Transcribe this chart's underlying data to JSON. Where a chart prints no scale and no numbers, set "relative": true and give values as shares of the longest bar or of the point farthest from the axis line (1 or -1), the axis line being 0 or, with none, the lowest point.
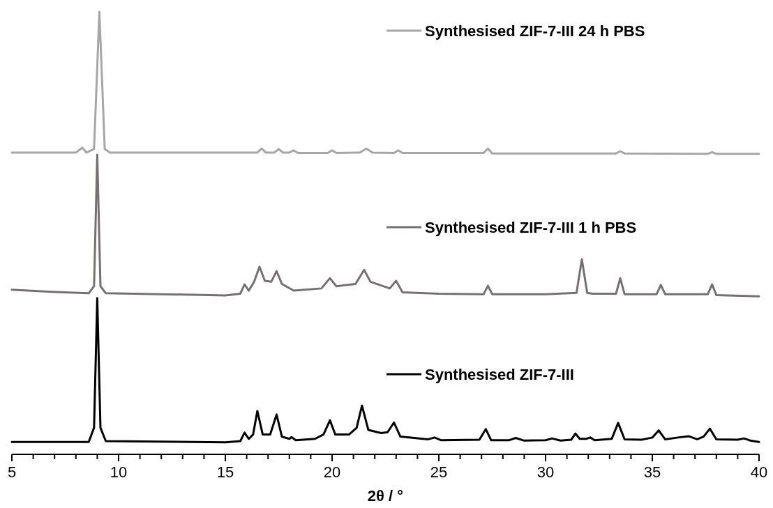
{
  "chart_data": {
    "type": "line",
    "relative": true,
    "xlabel": "2θ / °",
    "xlim": [
      5,
      40
    ],
    "xticks": [
      5,
      {
        "value": 6,
        "label": null
      },
      {
        "value": 7,
        "label": null
      },
      {
        "value": 8,
        "label": null
      },
      {
        "value": 9,
        "label": null
      },
      10,
      {
        "value": 11,
        "label": null
      },
      {
        "value": 12,
        "label": null
      },
      {
        "value": 13,
        "label": null
      },
      {
        "value": 14,
        "label": null
      },
      15,
      {
        "value": 16,
        "label": null
      },
      {
        "value": 17,
        "label": null
      },
      {
        "value": 18,
        "label": null
      },
      {
        "value": 19,
        "label": null
      },
      20,
      {
        "value": 21,
        "label": null
      },
      {
        "value": 22,
        "label": null
      },
      {
        "value": 23,
        "label": null
      },
      {
        "value": 24,
        "label": null
      },
      25,
      {
        "value": 26,
        "label": null
      },
      {
        "value": 27,
        "label": null
      },
      {
        "value": 28,
        "label": null
      },
      {
        "value": 29,
        "label": null
      },
      30,
      {
        "value": 31,
        "label": null
      },
      {
        "value": 32,
        "label": null
      },
      {
        "value": 33,
        "label": null
      },
      {
        "value": 34,
        "label": null
      },
      35,
      {
        "value": 36,
        "label": null
      },
      {
        "value": 37,
        "label": null
      },
      {
        "value": 38,
        "label": null
      },
      {
        "value": 39,
        "label": null
      },
      40
    ],
    "legend": "right",
    "grid": false,
    "marker": "none",
    "line_style": "solid",
    "series": [
      {
        "name": "Synthesised ZIF-7-III 24 h PBS",
        "color": "#a6a6a6",
        "x": [
          5,
          8.0,
          8.3,
          8.5,
          8.85,
          9.1,
          9.35,
          9.6,
          11.5,
          16.5,
          16.7,
          16.9,
          17.3,
          17.5,
          17.7,
          18.0,
          18.2,
          18.4,
          19.8,
          20.0,
          20.2,
          21.3,
          21.6,
          21.9,
          22.9,
          23.1,
          23.3,
          27.1,
          27.3,
          27.5,
          33.3,
          33.5,
          33.7,
          37.6,
          37.8,
          38.0,
          40
        ],
        "values": [
          0.682,
          0.682,
          0.693,
          0.682,
          0.69,
          1.0,
          0.69,
          0.682,
          0.682,
          0.682,
          0.691,
          0.682,
          0.682,
          0.69,
          0.682,
          0.682,
          0.687,
          0.681,
          0.681,
          0.687,
          0.681,
          0.682,
          0.691,
          0.682,
          0.681,
          0.687,
          0.681,
          0.681,
          0.691,
          0.68,
          0.68,
          0.685,
          0.68,
          0.679,
          0.683,
          0.679,
          0.679
        ]
      },
      {
        "name": "Synthesised ZIF-7-III 1 h PBS",
        "color": "#767171",
        "x": [
          5,
          7,
          8.6,
          8.85,
          9.0,
          9.15,
          9.4,
          12,
          15,
          15.7,
          15.9,
          16.1,
          16.35,
          16.6,
          16.85,
          17.15,
          17.4,
          17.65,
          18.2,
          19.5,
          19.9,
          20.2,
          21.1,
          21.5,
          21.8,
          22.7,
          23.0,
          23.3,
          25,
          27.1,
          27.3,
          27.5,
          30,
          31.45,
          31.7,
          31.95,
          32.2,
          33.3,
          33.5,
          33.7,
          35.2,
          35.4,
          35.6,
          37.6,
          37.8,
          38.0,
          40
        ],
        "values": [
          0.372,
          0.367,
          0.364,
          0.38,
          0.677,
          0.38,
          0.364,
          0.362,
          0.359,
          0.363,
          0.384,
          0.37,
          0.39,
          0.424,
          0.392,
          0.39,
          0.414,
          0.385,
          0.37,
          0.375,
          0.398,
          0.38,
          0.385,
          0.417,
          0.39,
          0.375,
          0.392,
          0.366,
          0.363,
          0.362,
          0.381,
          0.362,
          0.362,
          0.365,
          0.441,
          0.365,
          0.363,
          0.363,
          0.398,
          0.362,
          0.362,
          0.383,
          0.362,
          0.362,
          0.384,
          0.36,
          0.357
        ]
      },
      {
        "name": "Synthesised ZIF-7-III",
        "color": "#000000",
        "x": [
          5,
          8.6,
          8.85,
          9.0,
          9.15,
          9.4,
          15,
          15.7,
          15.9,
          16.1,
          16.3,
          16.5,
          16.75,
          17.1,
          17.4,
          17.65,
          18.0,
          18.1,
          18.3,
          19.2,
          19.6,
          19.9,
          20.15,
          20.8,
          21.15,
          21.4,
          21.7,
          22.3,
          22.6,
          22.9,
          23.2,
          24.5,
          24.8,
          25.1,
          26.9,
          27.2,
          27.45,
          28.3,
          28.6,
          29,
          30,
          30.3,
          30.7,
          31.2,
          31.4,
          31.6,
          31.9,
          32.1,
          32.3,
          33.1,
          33.4,
          33.7,
          34.5,
          35,
          35.3,
          35.6,
          36.2,
          36.7,
          37.1,
          37.4,
          37.7,
          38,
          39,
          39.3,
          39.6,
          40
        ],
        "values": [
          0.028,
          0.028,
          0.06,
          0.353,
          0.06,
          0.03,
          0.027,
          0.03,
          0.049,
          0.035,
          0.045,
          0.098,
          0.045,
          0.045,
          0.09,
          0.04,
          0.035,
          0.039,
          0.032,
          0.035,
          0.045,
          0.077,
          0.045,
          0.045,
          0.06,
          0.11,
          0.055,
          0.048,
          0.05,
          0.072,
          0.04,
          0.034,
          0.038,
          0.032,
          0.033,
          0.057,
          0.032,
          0.032,
          0.037,
          0.031,
          0.032,
          0.036,
          0.031,
          0.033,
          0.047,
          0.035,
          0.035,
          0.038,
          0.032,
          0.035,
          0.071,
          0.034,
          0.033,
          0.038,
          0.054,
          0.034,
          0.038,
          0.041,
          0.034,
          0.04,
          0.058,
          0.034,
          0.033,
          0.036,
          0.031,
          0.028
        ]
      }
    ]
  }
}
